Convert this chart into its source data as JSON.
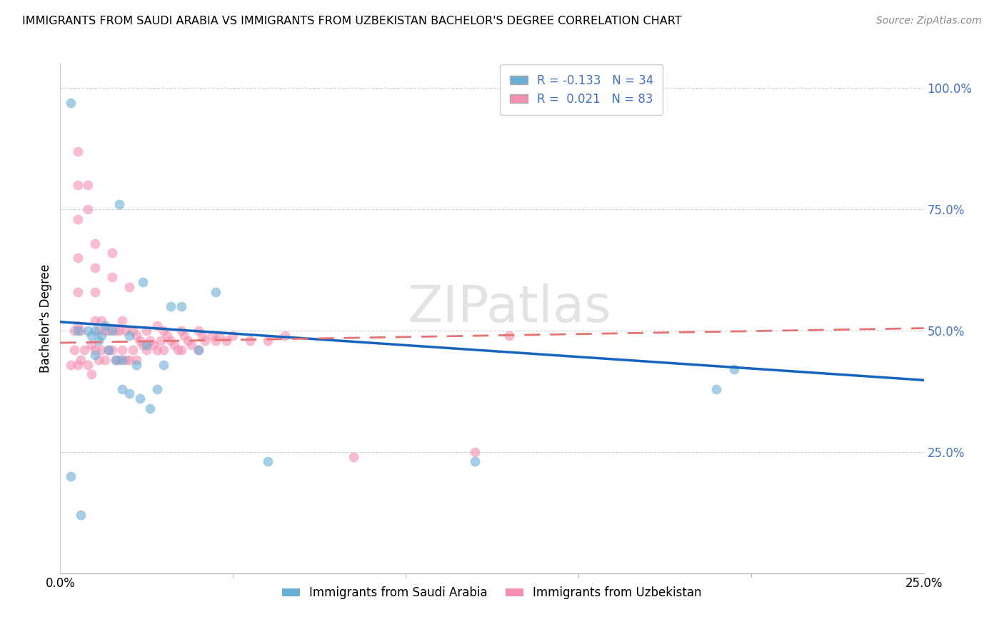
{
  "title": "IMMIGRANTS FROM SAUDI ARABIA VS IMMIGRANTS FROM UZBEKISTAN BACHELOR'S DEGREE CORRELATION CHART",
  "source": "Source: ZipAtlas.com",
  "ylabel": "Bachelor's Degree",
  "yticks": [
    0.0,
    0.25,
    0.5,
    0.75,
    1.0
  ],
  "ytick_labels": [
    "",
    "25.0%",
    "50.0%",
    "75.0%",
    "100.0%"
  ],
  "xlim": [
    0.0,
    0.25
  ],
  "ylim": [
    0.0,
    1.05
  ],
  "legend_saudi_R": "-0.133",
  "legend_saudi_N": "34",
  "legend_uzbek_R": "0.021",
  "legend_uzbek_N": "83",
  "color_saudi": "#6baed6",
  "color_uzbek": "#f48fb1",
  "watermark": "ZIPatlas",
  "saudi_x": [
    0.003,
    0.003,
    0.005,
    0.006,
    0.008,
    0.009,
    0.01,
    0.01,
    0.011,
    0.012,
    0.013,
    0.014,
    0.015,
    0.016,
    0.017,
    0.018,
    0.018,
    0.02,
    0.02,
    0.022,
    0.023,
    0.024,
    0.025,
    0.026,
    0.028,
    0.03,
    0.032,
    0.035,
    0.04,
    0.045,
    0.06,
    0.12,
    0.19,
    0.195
  ],
  "saudi_y": [
    0.97,
    0.2,
    0.5,
    0.12,
    0.5,
    0.49,
    0.5,
    0.45,
    0.48,
    0.49,
    0.51,
    0.46,
    0.5,
    0.44,
    0.76,
    0.44,
    0.38,
    0.49,
    0.37,
    0.43,
    0.36,
    0.6,
    0.47,
    0.34,
    0.38,
    0.43,
    0.55,
    0.55,
    0.46,
    0.58,
    0.23,
    0.23,
    0.38,
    0.42
  ],
  "uzbek_x": [
    0.003,
    0.004,
    0.004,
    0.005,
    0.005,
    0.005,
    0.005,
    0.005,
    0.005,
    0.005,
    0.006,
    0.006,
    0.007,
    0.008,
    0.008,
    0.008,
    0.009,
    0.009,
    0.01,
    0.01,
    0.01,
    0.01,
    0.01,
    0.011,
    0.011,
    0.012,
    0.012,
    0.013,
    0.013,
    0.014,
    0.014,
    0.015,
    0.015,
    0.015,
    0.016,
    0.016,
    0.017,
    0.017,
    0.018,
    0.018,
    0.019,
    0.019,
    0.02,
    0.02,
    0.021,
    0.021,
    0.022,
    0.022,
    0.023,
    0.024,
    0.025,
    0.025,
    0.026,
    0.027,
    0.028,
    0.028,
    0.029,
    0.03,
    0.03,
    0.031,
    0.032,
    0.033,
    0.034,
    0.035,
    0.035,
    0.036,
    0.037,
    0.038,
    0.04,
    0.04,
    0.041,
    0.042,
    0.044,
    0.045,
    0.046,
    0.048,
    0.05,
    0.055,
    0.06,
    0.065,
    0.085,
    0.12,
    0.13
  ],
  "uzbek_y": [
    0.43,
    0.5,
    0.46,
    0.87,
    0.8,
    0.73,
    0.65,
    0.58,
    0.51,
    0.43,
    0.5,
    0.44,
    0.46,
    0.8,
    0.75,
    0.43,
    0.47,
    0.41,
    0.68,
    0.63,
    0.58,
    0.52,
    0.46,
    0.5,
    0.44,
    0.52,
    0.46,
    0.5,
    0.44,
    0.5,
    0.46,
    0.66,
    0.61,
    0.46,
    0.5,
    0.44,
    0.5,
    0.44,
    0.52,
    0.46,
    0.5,
    0.44,
    0.59,
    0.44,
    0.5,
    0.46,
    0.49,
    0.44,
    0.48,
    0.47,
    0.5,
    0.46,
    0.48,
    0.47,
    0.51,
    0.46,
    0.48,
    0.5,
    0.46,
    0.49,
    0.48,
    0.47,
    0.46,
    0.5,
    0.46,
    0.49,
    0.48,
    0.47,
    0.5,
    0.46,
    0.49,
    0.48,
    0.49,
    0.48,
    0.49,
    0.48,
    0.49,
    0.48,
    0.48,
    0.49,
    0.24,
    0.25,
    0.49
  ]
}
